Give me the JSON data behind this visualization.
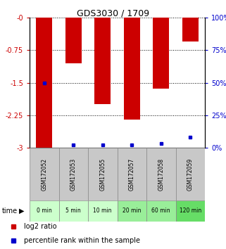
{
  "title": "GDS3030 / 1709",
  "samples": [
    "GSM172052",
    "GSM172053",
    "GSM172055",
    "GSM172057",
    "GSM172058",
    "GSM172059"
  ],
  "time_labels": [
    "0 min",
    "5 min",
    "10 min",
    "20 min",
    "60 min",
    "120 min"
  ],
  "log2_ratios": [
    -3.0,
    -1.05,
    -2.0,
    -2.35,
    -1.63,
    -0.55
  ],
  "percentile_ranks": [
    50,
    2,
    2,
    2,
    3,
    8
  ],
  "ylim_left": [
    -3,
    0
  ],
  "ylim_right": [
    0,
    100
  ],
  "yticks_left": [
    0,
    -0.75,
    -1.5,
    -2.25,
    -3
  ],
  "yticks_right": [
    0,
    25,
    50,
    75,
    100
  ],
  "bar_color": "#cc0000",
  "blue_color": "#0000cc",
  "left_tick_color": "#cc0000",
  "right_tick_color": "#0000cc",
  "sample_bg_color": "#c8c8c8",
  "time_bg_colors": [
    "#ccffcc",
    "#ccffcc",
    "#ccffcc",
    "#99ee99",
    "#99ee99",
    "#66dd66"
  ],
  "bar_width": 0.55
}
